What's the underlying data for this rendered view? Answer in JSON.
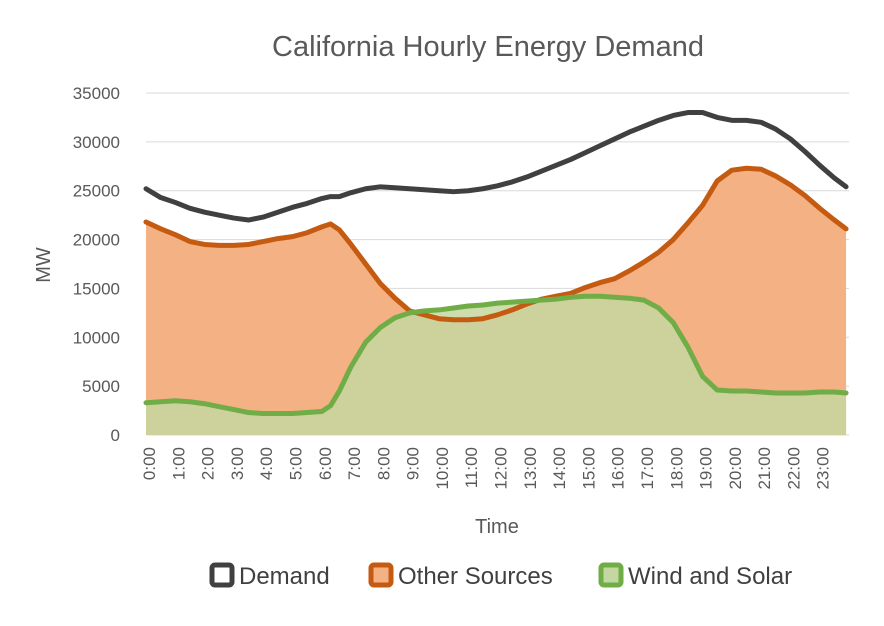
{
  "chart_data": {
    "type": "area",
    "title": "California Hourly Energy Demand",
    "xlabel": "Time",
    "ylabel": "MW",
    "ylim": [
      0,
      35000
    ],
    "yticks": [
      0,
      5000,
      10000,
      15000,
      20000,
      25000,
      30000,
      35000
    ],
    "grid": true,
    "legend_position": "bottom",
    "categories": [
      "0:00",
      "1:00",
      "2:00",
      "3:00",
      "4:00",
      "5:00",
      "6:00",
      "7:00",
      "8:00",
      "9:00",
      "10:00",
      "11:00",
      "12:00",
      "13:00",
      "14:00",
      "15:00",
      "16:00",
      "17:00",
      "18:00",
      "19:00",
      "20:00",
      "21:00",
      "22:00",
      "23:00"
    ],
    "x": [
      0,
      0.5,
      1,
      1.5,
      2,
      2.5,
      3,
      3.5,
      4,
      4.5,
      5,
      5.5,
      6,
      6.3,
      6.6,
      7,
      7.5,
      8,
      8.5,
      9,
      9.5,
      10,
      10.5,
      11,
      11.5,
      12,
      12.5,
      13,
      13.5,
      14,
      14.5,
      15,
      15.5,
      16,
      16.5,
      17,
      17.5,
      18,
      18.5,
      19,
      19.5,
      20,
      20.5,
      21,
      21.5,
      22,
      22.5,
      23,
      23.5,
      23.9
    ],
    "series": [
      {
        "name": "Demand",
        "color": "#404040",
        "values": [
          25200,
          24300,
          23800,
          23200,
          22800,
          22500,
          22200,
          22000,
          22300,
          22800,
          23300,
          23700,
          24200,
          24400,
          24400,
          24800,
          25200,
          25400,
          25300,
          25200,
          25100,
          25000,
          24900,
          25000,
          25200,
          25500,
          25900,
          26400,
          27000,
          27600,
          28200,
          28900,
          29600,
          30300,
          31000,
          31600,
          32200,
          32700,
          33000,
          33000,
          32500,
          32200,
          32200,
          32000,
          31300,
          30300,
          29000,
          27600,
          26300,
          25400
        ]
      },
      {
        "name": "Other Sources",
        "color": "#C55A11",
        "fill": "#F4B183",
        "values": [
          21800,
          21100,
          20500,
          19800,
          19500,
          19400,
          19400,
          19500,
          19800,
          20100,
          20300,
          20700,
          21300,
          21600,
          21000,
          19500,
          17500,
          15500,
          14000,
          12700,
          12300,
          11900,
          11800,
          11800,
          11900,
          12300,
          12800,
          13400,
          13900,
          14200,
          14500,
          15100,
          15600,
          16000,
          16800,
          17700,
          18700,
          20000,
          21700,
          23500,
          26000,
          27100,
          27300,
          27200,
          26500,
          25600,
          24500,
          23200,
          22000,
          21100
        ]
      },
      {
        "name": "Wind and Solar",
        "color": "#70AD47",
        "fill": "#C5D7A0",
        "values": [
          3300,
          3400,
          3500,
          3400,
          3200,
          2900,
          2600,
          2300,
          2200,
          2200,
          2200,
          2300,
          2400,
          3000,
          4500,
          7000,
          9500,
          11000,
          12000,
          12500,
          12700,
          12800,
          13000,
          13200,
          13300,
          13500,
          13600,
          13700,
          13800,
          13900,
          14100,
          14200,
          14200,
          14100,
          14000,
          13800,
          13000,
          11500,
          9000,
          6000,
          4600,
          4500,
          4500,
          4400,
          4300,
          4300,
          4300,
          4400,
          4400,
          4300
        ]
      }
    ]
  }
}
